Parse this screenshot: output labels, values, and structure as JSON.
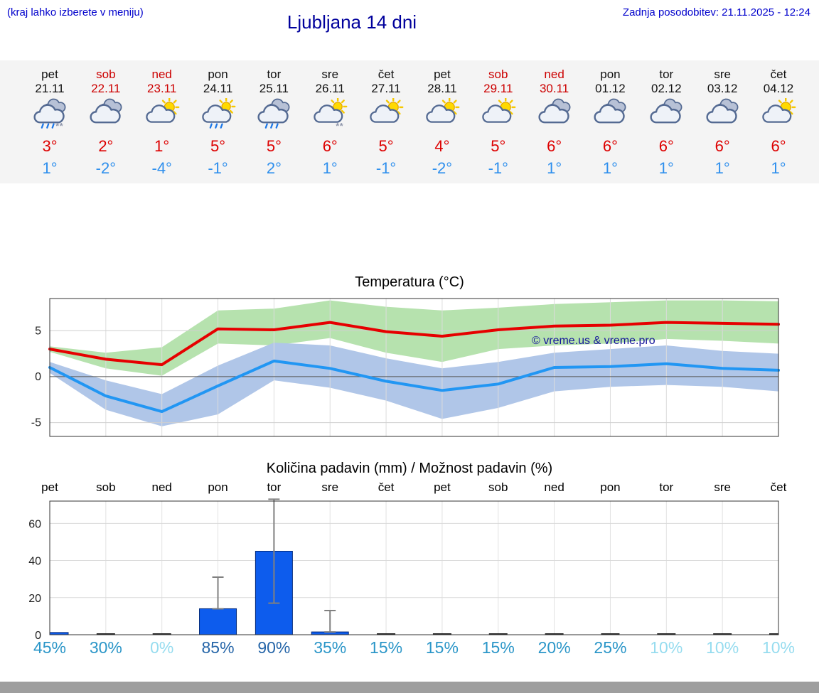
{
  "header": {
    "note_left": "(kraj lahko izberete v meniju)",
    "title": "Ljubljana 14 dni",
    "updated": "Zadnja posodobitev: 21.11.2025 - 12:24"
  },
  "forecast": {
    "colors": {
      "tmax": "#dd0000",
      "tmin": "#2e8fed",
      "weekend": "#cc0000",
      "weekday": "#111111"
    },
    "days": [
      {
        "name": "pet",
        "date": "21.11",
        "weekend": false,
        "icon": "rain-snow",
        "tmax": "3°",
        "tmin": "1°"
      },
      {
        "name": "sob",
        "date": "22.11",
        "weekend": true,
        "icon": "cloudy",
        "tmax": "2°",
        "tmin": "-2°"
      },
      {
        "name": "ned",
        "date": "23.11",
        "weekend": true,
        "icon": "sun-cloud",
        "tmax": "1°",
        "tmin": "-4°"
      },
      {
        "name": "pon",
        "date": "24.11",
        "weekend": false,
        "icon": "rain-sun",
        "tmax": "5°",
        "tmin": "-1°"
      },
      {
        "name": "tor",
        "date": "25.11",
        "weekend": false,
        "icon": "rain",
        "tmax": "5°",
        "tmin": "2°"
      },
      {
        "name": "sre",
        "date": "26.11",
        "weekend": false,
        "icon": "snow-sun",
        "tmax": "6°",
        "tmin": "1°"
      },
      {
        "name": "čet",
        "date": "27.11",
        "weekend": false,
        "icon": "sun-cloud",
        "tmax": "5°",
        "tmin": "-1°"
      },
      {
        "name": "pet",
        "date": "28.11",
        "weekend": false,
        "icon": "sun-cloud",
        "tmax": "4°",
        "tmin": "-2°"
      },
      {
        "name": "sob",
        "date": "29.11",
        "weekend": true,
        "icon": "sun-cloud",
        "tmax": "5°",
        "tmin": "-1°"
      },
      {
        "name": "ned",
        "date": "30.11",
        "weekend": true,
        "icon": "cloudy",
        "tmax": "6°",
        "tmin": "1°"
      },
      {
        "name": "pon",
        "date": "01.12",
        "weekend": false,
        "icon": "cloudy",
        "tmax": "6°",
        "tmin": "1°"
      },
      {
        "name": "tor",
        "date": "02.12",
        "weekend": false,
        "icon": "cloudy",
        "tmax": "6°",
        "tmin": "1°"
      },
      {
        "name": "sre",
        "date": "03.12",
        "weekend": false,
        "icon": "cloudy",
        "tmax": "6°",
        "tmin": "1°"
      },
      {
        "name": "čet",
        "date": "04.12",
        "weekend": false,
        "icon": "sun-cloud",
        "tmax": "6°",
        "tmin": "1°"
      }
    ]
  },
  "chart_data": [
    {
      "type": "line",
      "title": "Temperatura (°C)",
      "categories": [
        "pet",
        "sob",
        "ned",
        "pon",
        "tor",
        "sre",
        "čet",
        "pet",
        "sob",
        "ned",
        "pon",
        "tor",
        "sre",
        "čet"
      ],
      "ylim": [
        -6.5,
        8.5
      ],
      "yticks": [
        -5,
        0,
        5
      ],
      "grid": true,
      "watermark": "© vreme.us & vreme.pro",
      "watermark_color": "#15159b",
      "series": [
        {
          "name": "tmax",
          "color": "#e60000",
          "values": [
            3.0,
            1.9,
            1.3,
            5.2,
            5.1,
            5.9,
            4.9,
            4.4,
            5.1,
            5.5,
            5.6,
            5.9,
            5.8,
            5.7
          ]
        },
        {
          "name": "tmin",
          "color": "#2196f3",
          "values": [
            1.0,
            -2.1,
            -3.8,
            -1.0,
            1.7,
            0.9,
            -0.5,
            -1.5,
            -0.8,
            1.0,
            1.1,
            1.4,
            0.9,
            0.7
          ]
        }
      ],
      "bands": [
        {
          "name": "tmax-range",
          "color": "#b6e2ae",
          "upper": [
            3.3,
            2.6,
            3.2,
            7.2,
            7.4,
            8.3,
            7.6,
            7.2,
            7.5,
            7.9,
            8.1,
            8.3,
            8.3,
            8.2
          ],
          "lower": [
            2.7,
            0.9,
            0.1,
            3.6,
            3.4,
            4.2,
            2.6,
            1.6,
            3.0,
            3.4,
            3.6,
            4.1,
            3.9,
            3.6
          ]
        },
        {
          "name": "tmin-range",
          "color": "#b0c6e8",
          "upper": [
            1.6,
            -0.4,
            -1.9,
            1.2,
            3.7,
            3.4,
            2.0,
            0.9,
            1.6,
            2.6,
            3.0,
            3.4,
            2.8,
            2.5
          ],
          "lower": [
            0.4,
            -3.6,
            -5.4,
            -4.1,
            -0.4,
            -1.2,
            -2.6,
            -4.6,
            -3.4,
            -1.6,
            -1.1,
            -0.9,
            -1.1,
            -1.6
          ]
        }
      ]
    },
    {
      "type": "bar",
      "title": "Količina padavin (mm) / Možnost padavin (%)",
      "categories": [
        "pet",
        "sob",
        "ned",
        "pon",
        "tor",
        "sre",
        "čet",
        "pet",
        "sob",
        "ned",
        "pon",
        "tor",
        "sre",
        "čet"
      ],
      "values": [
        1.2,
        0,
        0,
        14,
        45,
        1.5,
        0,
        0,
        0,
        0,
        0,
        0,
        0,
        0
      ],
      "whisker_low": [
        null,
        null,
        null,
        14,
        17,
        1.5,
        null,
        null,
        null,
        null,
        null,
        null,
        null,
        null
      ],
      "whisker_high": [
        null,
        null,
        null,
        31,
        73,
        13,
        null,
        null,
        null,
        null,
        null,
        null,
        null,
        null
      ],
      "ylim": [
        0,
        72
      ],
      "yticks": [
        0,
        20,
        40,
        60
      ],
      "grid": true,
      "bar_color": "#0d5ced",
      "bar_border": "#00287a",
      "probabilities": [
        {
          "label": "45%",
          "color": "#2b96c8"
        },
        {
          "label": "30%",
          "color": "#2b96c8"
        },
        {
          "label": "0%",
          "color": "#96dcef"
        },
        {
          "label": "85%",
          "color": "#2565a8"
        },
        {
          "label": "90%",
          "color": "#2565a8"
        },
        {
          "label": "35%",
          "color": "#2b96c8"
        },
        {
          "label": "15%",
          "color": "#2b96c8"
        },
        {
          "label": "15%",
          "color": "#2b96c8"
        },
        {
          "label": "15%",
          "color": "#2b96c8"
        },
        {
          "label": "20%",
          "color": "#2b96c8"
        },
        {
          "label": "25%",
          "color": "#2b96c8"
        },
        {
          "label": "10%",
          "color": "#96dcef"
        },
        {
          "label": "10%",
          "color": "#96dcef"
        },
        {
          "label": "10%",
          "color": "#96dcef"
        }
      ]
    }
  ]
}
